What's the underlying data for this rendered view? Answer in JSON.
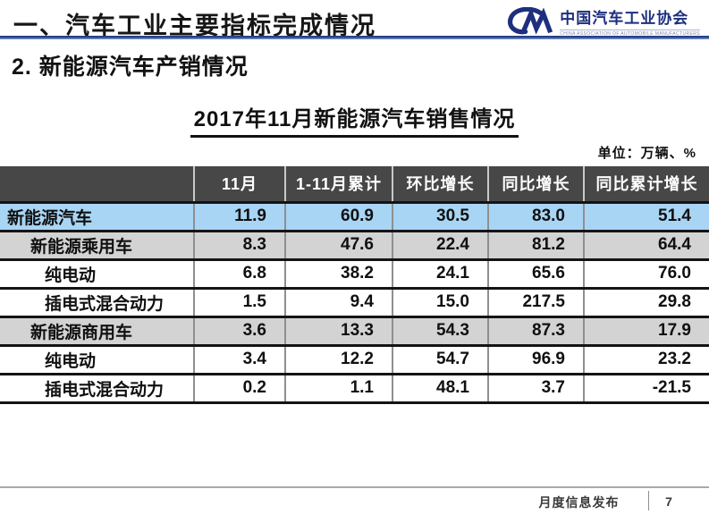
{
  "header": {
    "title": "一、汽车工业主要指标完成情况",
    "logo": {
      "org_cn": "中国汽车工业协会",
      "org_en": "CHINA ASSOCIATION OF AUTOMOBILE MANUFACTURERS"
    }
  },
  "section": {
    "title": "2. 新能源汽车产销情况"
  },
  "table_section": {
    "title": "2017年11月新能源汽车销售情况",
    "unit_note": "单位：万辆、%"
  },
  "chart_data": {
    "type": "table",
    "title": "2017年11月新能源汽车销售情况",
    "unit": "万辆、%",
    "columns": [
      "",
      "11月",
      "1-11月累计",
      "环比增长",
      "同比增长",
      "同比累计增长"
    ],
    "rows": [
      {
        "label": "新能源汽车",
        "indent": 0,
        "style": "highlight",
        "values": [
          "11.9",
          "60.9",
          "30.5",
          "83.0",
          "51.4"
        ]
      },
      {
        "label": "新能源乘用车",
        "indent": 1,
        "style": "gray",
        "values": [
          "8.3",
          "47.6",
          "22.4",
          "81.2",
          "64.4"
        ]
      },
      {
        "label": "纯电动",
        "indent": 2,
        "style": "white",
        "values": [
          "6.8",
          "38.2",
          "24.1",
          "65.6",
          "76.0"
        ]
      },
      {
        "label": "插电式混合动力",
        "indent": 2,
        "style": "white",
        "values": [
          "1.5",
          "9.4",
          "15.0",
          "217.5",
          "29.8"
        ]
      },
      {
        "label": "新能源商用车",
        "indent": 1,
        "style": "gray",
        "values": [
          "3.6",
          "13.3",
          "54.3",
          "87.3",
          "17.9"
        ]
      },
      {
        "label": "纯电动",
        "indent": 2,
        "style": "white",
        "values": [
          "3.4",
          "12.2",
          "54.7",
          "96.9",
          "23.2"
        ]
      },
      {
        "label": "插电式混合动力",
        "indent": 2,
        "style": "white",
        "values": [
          "0.2",
          "1.1",
          "48.1",
          "3.7",
          "-21.5"
        ]
      }
    ]
  },
  "footer": {
    "label": "月度信息发布",
    "page": "7"
  },
  "colors": {
    "accent_line": "#2c4a94",
    "table_header_bg": "#474747",
    "highlight_row_bg": "#a9d5f4",
    "gray_row_bg": "#d3d3d3",
    "logo_navy": "#1d2f7e"
  }
}
